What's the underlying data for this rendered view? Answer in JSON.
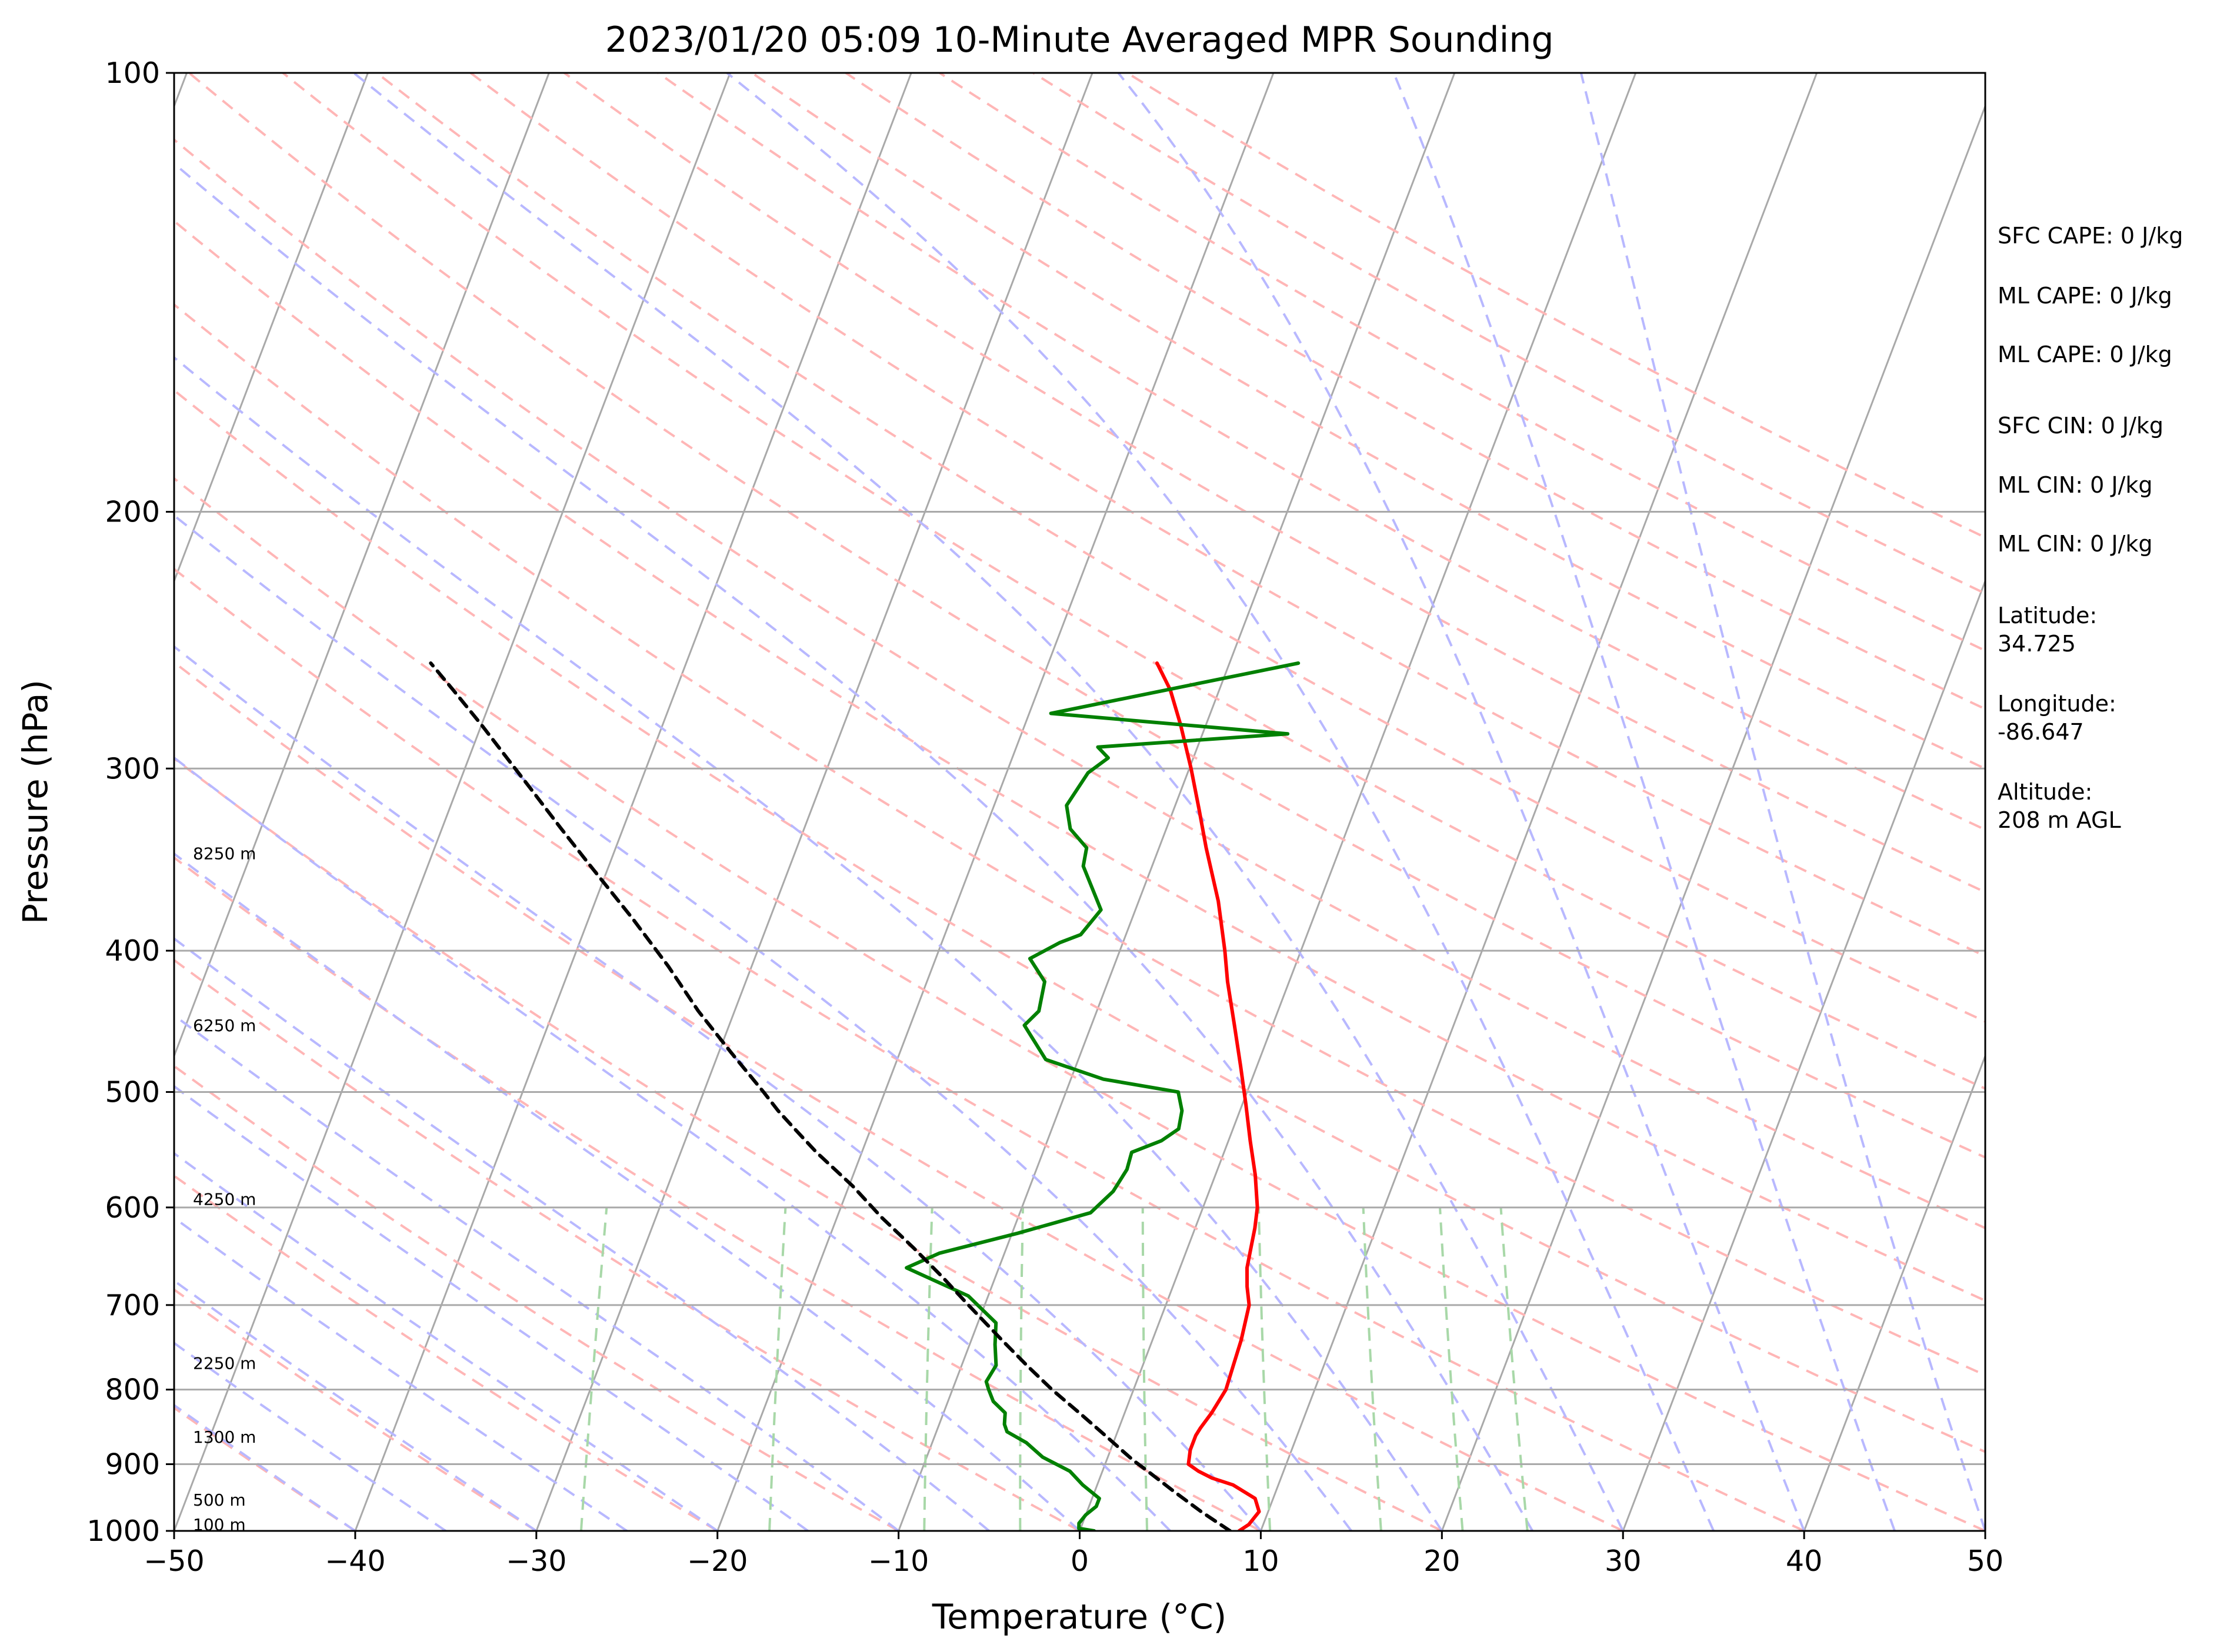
{
  "chart_data": {
    "type": "line",
    "title": "2023/01/20 05:09 10-Minute Averaged MPR Sounding",
    "xlabel": "Temperature (°C)",
    "ylabel": "Pressure (hPa)",
    "xlim": [
      -50,
      50
    ],
    "ylim": [
      1000,
      100
    ],
    "y_scale": "log",
    "skew": "skew-T log-P",
    "grid": true,
    "x_ticks": [
      -50,
      -40,
      -30,
      -20,
      -10,
      0,
      10,
      20,
      30,
      40,
      50
    ],
    "x_tick_labels": [
      "−50",
      "−40",
      "−30",
      "−20",
      "−10",
      "0",
      "10",
      "20",
      "30",
      "40",
      "50"
    ],
    "y_ticks": [
      100,
      200,
      300,
      400,
      500,
      600,
      700,
      800,
      900,
      1000
    ],
    "y_tick_labels": [
      "100",
      "200",
      "300",
      "400",
      "500",
      "600",
      "700",
      "800",
      "900",
      "1000"
    ],
    "height_labels": [
      {
        "text": "100 m",
        "p": 990
      },
      {
        "text": "500 m",
        "p": 952
      },
      {
        "text": "1300 m",
        "p": 862
      },
      {
        "text": "2250 m",
        "p": 767
      },
      {
        "text": "4250 m",
        "p": 592
      },
      {
        "text": "6250 m",
        "p": 450
      },
      {
        "text": "8250 m",
        "p": 343
      }
    ],
    "series": [
      {
        "role": "temperature",
        "color": "#ff0000",
        "p": [
          1000,
          990,
          970,
          950,
          930,
          920,
          910,
          900,
          880,
          860,
          850,
          830,
          800,
          770,
          740,
          700,
          680,
          660,
          640,
          620,
          600,
          570,
          540,
          510,
          480,
          450,
          420,
          400,
          370,
          340,
          320,
          300,
          280,
          265,
          254
        ],
        "t": [
          8.8,
          9.2,
          9.5,
          9.0,
          7.5,
          6.2,
          5.3,
          4.6,
          4.4,
          4.4,
          4.5,
          4.8,
          5.1,
          5.0,
          4.9,
          4.6,
          4.1,
          3.7,
          3.5,
          3.3,
          3.0,
          2.2,
          1.2,
          0.2,
          -0.9,
          -2.1,
          -3.4,
          -4.2,
          -5.6,
          -7.4,
          -8.6,
          -9.9,
          -11.4,
          -12.7,
          -14.0
        ]
      },
      {
        "role": "dewpoint",
        "color": "#008000",
        "p": [
          1000,
          996,
          988,
          975,
          962,
          950,
          930,
          910,
          890,
          870,
          855,
          845,
          830,
          815,
          800,
          790,
          770,
          745,
          720,
          690,
          660,
          645,
          625,
          605,
          585,
          565,
          550,
          540,
          530,
          515,
          500,
          490,
          475,
          450,
          440,
          420,
          405,
          395,
          390,
          375,
          350,
          340,
          330,
          318,
          302,
          295,
          290,
          284,
          275,
          254
        ],
        "t": [
          0.8,
          -0.1,
          -0.2,
          0.0,
          0.4,
          0.4,
          -0.8,
          -1.8,
          -3.6,
          -4.8,
          -6.1,
          -6.4,
          -6.6,
          -7.5,
          -8.0,
          -8.3,
          -8.1,
          -8.6,
          -9.0,
          -11.1,
          -15.1,
          -13.6,
          -9.7,
          -6.1,
          -5.3,
          -5.0,
          -5.1,
          -3.7,
          -3.0,
          -3.2,
          -3.8,
          -8.2,
          -11.8,
          -13.7,
          -13.2,
          -13.5,
          -14.8,
          -13.5,
          -12.5,
          -11.9,
          -13.8,
          -14.0,
          -15.3,
          -16.0,
          -15.5,
          -14.7,
          -15.5,
          -5.3,
          -18.8,
          -6.2
        ]
      },
      {
        "role": "parcel",
        "color": "#000000",
        "style": "dashed",
        "p": [
          1000,
          970,
          940,
          910,
          895,
          880,
          860,
          830,
          800,
          770,
          740,
          700,
          670,
          640,
          610,
          580,
          550,
          530,
          515,
          500,
          470,
          440,
          410,
          380,
          350,
          330,
          310,
          295,
          280,
          265,
          254
        ],
        "t": [
          8.3,
          6.3,
          4.4,
          2.5,
          1.5,
          0.6,
          -0.6,
          -2.5,
          -4.5,
          -6.4,
          -8.3,
          -10.9,
          -12.9,
          -15.1,
          -17.5,
          -19.8,
          -22.5,
          -24.2,
          -25.5,
          -26.7,
          -29.3,
          -32.0,
          -34.6,
          -37.6,
          -41.0,
          -43.4,
          -45.9,
          -47.9,
          -50.0,
          -52.3,
          -54.1
        ]
      }
    ],
    "background_lines": {
      "isotherms": {
        "color": "#a9a9a9",
        "style": "solid"
      },
      "dry_adiabats": {
        "color": "#ffb6b6",
        "style": "dashed"
      },
      "moist_adiabats": {
        "color": "#b8b8ff",
        "style": "dashed"
      },
      "mixing_ratio": {
        "color": "#a8d8a8",
        "style": "dashed"
      }
    }
  },
  "side_panel": {
    "sfc_cape": "SFC CAPE: 0 J/kg",
    "ml_cape_1": "ML CAPE: 0 J/kg",
    "ml_cape_2": "ML CAPE: 0 J/kg",
    "sfc_cin": "SFC CIN: 0 J/kg",
    "ml_cin_1": "ML CIN: 0 J/kg",
    "ml_cin_2": "ML CIN: 0 J/kg",
    "latitude_label": "Latitude:",
    "latitude_value": "34.725",
    "longitude_label": "Longitude:",
    "longitude_value": "-86.647",
    "altitude_label": "Altitude:",
    "altitude_value": "208 m AGL"
  }
}
